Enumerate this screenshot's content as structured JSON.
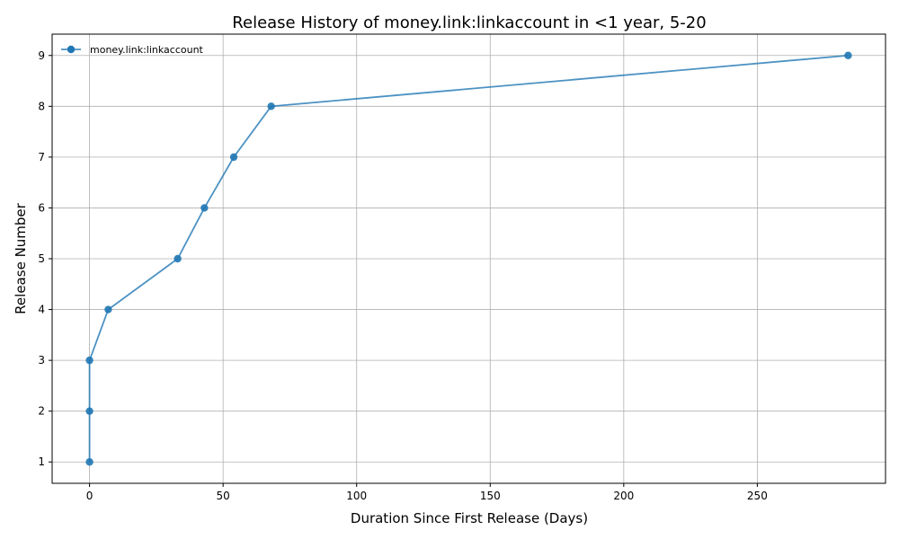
{
  "chart_data": {
    "type": "line",
    "title": "Release History of money.link:linkaccount in <1 year, 5-20",
    "xlabel": "Duration Since First Release (Days)",
    "ylabel": "Release Number",
    "xlim": [
      -14,
      298
    ],
    "ylim": [
      0.58,
      9.42
    ],
    "xticks": [
      0,
      50,
      100,
      150,
      200,
      250
    ],
    "yticks": [
      1,
      2,
      3,
      4,
      5,
      6,
      7,
      8,
      9
    ],
    "grid": true,
    "legend_position": "top-left",
    "series": [
      {
        "name": "money.link:linkaccount",
        "color": "#1f77b4",
        "x": [
          0,
          0,
          0,
          7,
          33,
          43,
          54,
          68,
          284
        ],
        "y": [
          1,
          2,
          3,
          4,
          5,
          6,
          7,
          8,
          9
        ]
      }
    ]
  }
}
